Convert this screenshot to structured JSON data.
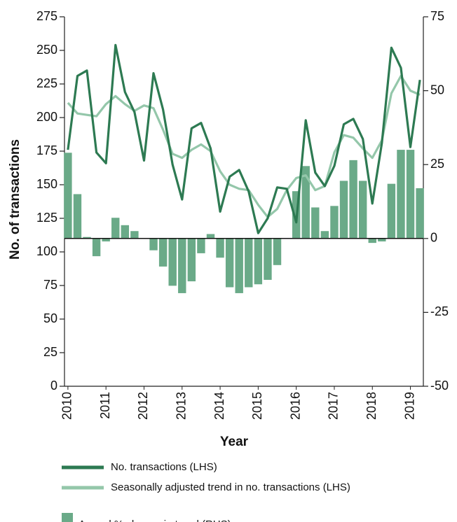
{
  "chart_data": {
    "type": "combo",
    "x_label": "Year",
    "y_label": "No. of transactions",
    "x": [
      2010,
      2010.25,
      2010.5,
      2010.75,
      2011,
      2011.25,
      2011.5,
      2011.75,
      2012,
      2012.25,
      2012.5,
      2012.75,
      2013,
      2013.25,
      2013.5,
      2013.75,
      2014,
      2014.25,
      2014.5,
      2014.75,
      2015,
      2015.25,
      2015.5,
      2015.75,
      2016,
      2016.25,
      2016.5,
      2016.75,
      2017,
      2017.25,
      2017.5,
      2017.75,
      2018,
      2018.25,
      2018.5,
      2018.75,
      2019,
      2019.25
    ],
    "xlim": [
      2009.91,
      2019.34
    ],
    "xticks": [
      2010,
      2011,
      2012,
      2013,
      2014,
      2015,
      2016,
      2017,
      2018,
      2019
    ],
    "ylim": [
      0,
      275
    ],
    "yticks": [
      0,
      25,
      50,
      75,
      100,
      125,
      150,
      175,
      200,
      225,
      250,
      275
    ],
    "y2lim": [
      -50,
      75
    ],
    "y2ticks": [
      -50,
      -25,
      0,
      25,
      50,
      75
    ],
    "series": [
      {
        "name": "No. transactions (LHS)",
        "type": "line",
        "color": "#2d7a52",
        "values": [
          176,
          231,
          235,
          174,
          166,
          254,
          219,
          204,
          168,
          233,
          206,
          165,
          139,
          192,
          196,
          177,
          130,
          156,
          161,
          145,
          114,
          125,
          148,
          147,
          122,
          198,
          159,
          149,
          164,
          195,
          199,
          184,
          136,
          181,
          252,
          237,
          178,
          228
        ]
      },
      {
        "name": "Seasonally adjusted trend in no. transactions (LHS)",
        "type": "line",
        "color": "#94c7aa",
        "values": [
          211,
          203,
          202,
          201,
          210,
          216,
          210,
          205,
          209,
          207,
          191,
          173,
          170,
          176,
          180,
          175,
          160,
          150,
          147,
          146,
          135,
          126,
          132,
          146,
          155,
          157,
          146,
          149,
          174,
          187,
          185,
          177,
          170,
          183,
          218,
          231,
          220,
          217
        ]
      },
      {
        "name": "Annual % change in trend (RHS)",
        "type": "bar",
        "axis": "y2",
        "color": "#6aaa88",
        "values": [
          29,
          15,
          0.5,
          -6,
          -1,
          7,
          4.5,
          2.5,
          0,
          -4,
          -9.5,
          -16,
          -18.5,
          -14.5,
          -5,
          1.5,
          -6.5,
          -16.5,
          -18.5,
          -16.5,
          -15.5,
          -14,
          -9,
          0,
          16,
          24.5,
          10.5,
          2.5,
          11,
          19.5,
          26.5,
          19.5,
          -1.5,
          -1,
          18.5,
          30,
          30,
          17
        ]
      }
    ]
  }
}
